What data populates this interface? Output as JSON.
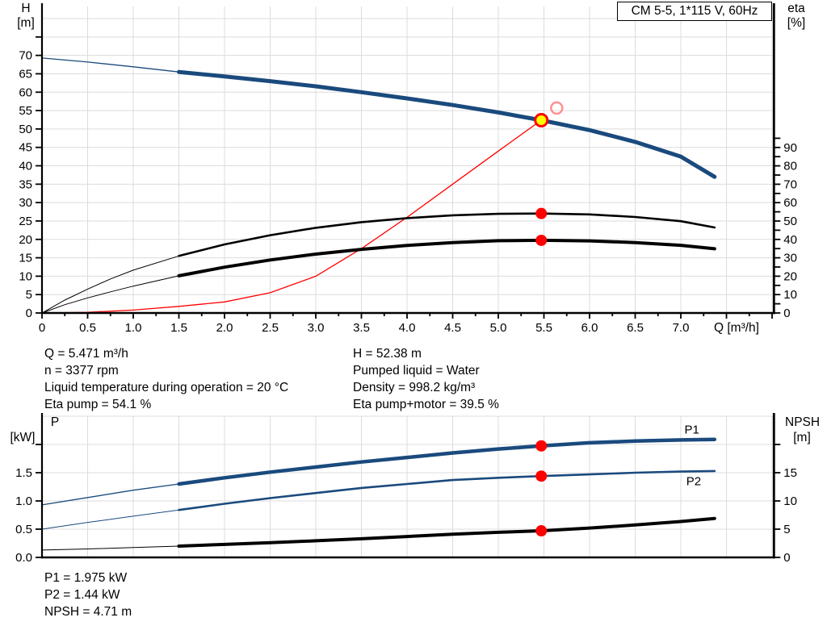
{
  "colors": {
    "blue": "#1a4a7d",
    "black": "#000000",
    "red": "#ff0000",
    "red_light": "#ff9090",
    "yellow": "#ffff00",
    "grid": "#dcdcdc",
    "axis": "#000000"
  },
  "chart_data": [
    {
      "type": "line",
      "name": "qh-efficiency-chart",
      "title": "CM 5-5, 1*115 V, 60Hz",
      "x_axis": {
        "label": "Q [m³/h]",
        "min": 0,
        "max": 8.02,
        "ticks": [
          [
            0,
            "0"
          ],
          [
            0.25,
            null
          ],
          [
            0.5,
            "0.5"
          ],
          [
            0.75,
            null
          ],
          [
            1,
            "1.0"
          ],
          [
            1.25,
            null
          ],
          [
            1.5,
            "1.5"
          ],
          [
            1.75,
            null
          ],
          [
            2,
            "2.0"
          ],
          [
            2.25,
            null
          ],
          [
            2.5,
            "2.5"
          ],
          [
            2.75,
            null
          ],
          [
            3,
            "3.0"
          ],
          [
            3.25,
            null
          ],
          [
            3.5,
            "3.5"
          ],
          [
            3.75,
            null
          ],
          [
            4,
            "4.0"
          ],
          [
            4.25,
            null
          ],
          [
            4.5,
            "4.5"
          ],
          [
            4.75,
            null
          ],
          [
            5,
            "5.0"
          ],
          [
            5.25,
            null
          ],
          [
            5.5,
            "5.5"
          ],
          [
            5.75,
            null
          ],
          [
            6,
            "6.0"
          ],
          [
            6.25,
            null
          ],
          [
            6.5,
            "6.5"
          ],
          [
            6.75,
            null
          ],
          [
            7,
            "7.0"
          ],
          [
            7.25,
            null
          ],
          [
            7.5,
            null
          ],
          [
            7.75,
            null
          ],
          [
            8,
            null
          ]
        ],
        "gridlines": [
          0.5,
          1,
          1.5,
          2,
          2.5,
          3,
          3.5,
          4,
          4.5,
          5,
          5.5,
          6,
          6.5,
          7,
          7.5,
          8
        ]
      },
      "y_left": {
        "label_1": "H",
        "label_2": "[m]",
        "min": 0,
        "max": 83.3,
        "ticks": [
          [
            0,
            "0"
          ],
          [
            5,
            "5"
          ],
          [
            10,
            "10"
          ],
          [
            15,
            "15"
          ],
          [
            20,
            "20"
          ],
          [
            25,
            "25"
          ],
          [
            30,
            "30"
          ],
          [
            35,
            "35"
          ],
          [
            40,
            "40"
          ],
          [
            45,
            "45"
          ],
          [
            50,
            "50"
          ],
          [
            55,
            "55"
          ],
          [
            60,
            "60"
          ],
          [
            65,
            "65"
          ],
          [
            70,
            "70"
          ],
          [
            75,
            null
          ]
        ],
        "gridlines": [
          5,
          10,
          15,
          20,
          25,
          30,
          35,
          40,
          45,
          50,
          55,
          60,
          65,
          70,
          75,
          80
        ]
      },
      "y_right": {
        "label_1": "eta",
        "label_2": "[%]",
        "min": 0,
        "max": 97,
        "ticks": [
          [
            0,
            "0"
          ],
          [
            5,
            null
          ],
          [
            10,
            "10"
          ],
          [
            15,
            null
          ],
          [
            20,
            "20"
          ],
          [
            25,
            null
          ],
          [
            30,
            "30"
          ],
          [
            35,
            null
          ],
          [
            40,
            "40"
          ],
          [
            45,
            null
          ],
          [
            50,
            "50"
          ],
          [
            55,
            null
          ],
          [
            60,
            "60"
          ],
          [
            65,
            null
          ],
          [
            70,
            "70"
          ],
          [
            75,
            null
          ],
          [
            80,
            "80"
          ],
          [
            85,
            null
          ],
          [
            90,
            "90"
          ],
          [
            95,
            null
          ]
        ]
      },
      "series": [
        {
          "name": "pump-curve",
          "axis": "left",
          "color": "blue",
          "thin_until": 1.5,
          "w_thin": 1.3,
          "w_thick": 5,
          "points": [
            [
              0,
              69.3
            ],
            [
              0.5,
              68.2
            ],
            [
              1,
              66.9
            ],
            [
              1.5,
              65.5
            ],
            [
              2,
              64.3
            ],
            [
              2.5,
              63.0
            ],
            [
              3,
              61.6
            ],
            [
              3.5,
              60.0
            ],
            [
              4,
              58.3
            ],
            [
              4.5,
              56.5
            ],
            [
              5,
              54.5
            ],
            [
              5.471,
              52.38
            ],
            [
              6,
              49.7
            ],
            [
              6.5,
              46.5
            ],
            [
              7,
              42.5
            ],
            [
              7.37,
              37.0
            ]
          ]
        },
        {
          "name": "system-curve",
          "axis": "left",
          "color": "red",
          "thin_until": 99,
          "w_thin": 1.3,
          "w_thick": 1.3,
          "points": [
            [
              0,
              0
            ],
            [
              0.5,
              0.2
            ],
            [
              1,
              0.8
            ],
            [
              1.5,
              1.8
            ],
            [
              2,
              3.0
            ],
            [
              2.5,
              5.5
            ],
            [
              3,
              10.0
            ],
            [
              3.5,
              17.5
            ],
            [
              4,
              26.0
            ],
            [
              4.5,
              35.0
            ],
            [
              5,
              44.0
            ],
            [
              5.471,
              52.38
            ]
          ]
        },
        {
          "name": "eta-pump-curve",
          "axis": "right",
          "color": "black",
          "thin_until": 1.5,
          "w_thin": 1,
          "w_thick": 2.6,
          "points": [
            [
              0,
              0
            ],
            [
              0.25,
              7
            ],
            [
              0.5,
              13
            ],
            [
              0.75,
              18.5
            ],
            [
              1,
              23.3
            ],
            [
              1.5,
              31
            ],
            [
              2,
              37.3
            ],
            [
              2.5,
              42.3
            ],
            [
              3,
              46.3
            ],
            [
              3.5,
              49.4
            ],
            [
              4,
              51.6
            ],
            [
              4.5,
              53.1
            ],
            [
              5,
              53.9
            ],
            [
              5.471,
              54.1
            ],
            [
              6,
              53.6
            ],
            [
              6.5,
              52.2
            ],
            [
              7,
              49.9
            ],
            [
              7.37,
              46.5
            ]
          ]
        },
        {
          "name": "eta-pump-motor-curve",
          "axis": "right",
          "color": "black",
          "thin_until": 1.5,
          "w_thin": 1,
          "w_thick": 4,
          "points": [
            [
              0,
              0
            ],
            [
              0.25,
              4.5
            ],
            [
              0.5,
              8.2
            ],
            [
              0.75,
              11.5
            ],
            [
              1,
              14.6
            ],
            [
              1.5,
              20.2
            ],
            [
              2,
              24.9
            ],
            [
              2.5,
              28.8
            ],
            [
              3,
              32.0
            ],
            [
              3.5,
              34.6
            ],
            [
              4,
              36.7
            ],
            [
              4.5,
              38.3
            ],
            [
              5,
              39.3
            ],
            [
              5.471,
              39.5
            ],
            [
              6,
              39.2
            ],
            [
              6.5,
              38.3
            ],
            [
              7,
              36.8
            ],
            [
              7.37,
              34.9
            ]
          ]
        }
      ],
      "markers": [
        {
          "name": "duty-point",
          "style": "yellow",
          "axis": "left",
          "q": 5.471,
          "v": 52.38
        },
        {
          "name": "requested-duty-point",
          "style": "hollow",
          "axis": "left",
          "q": 5.64,
          "v": 55.7
        },
        {
          "name": "eta-pump-op-point",
          "style": "red",
          "axis": "right",
          "q": 5.471,
          "v": 54.1
        },
        {
          "name": "eta-pump-motor-op-point",
          "style": "red",
          "axis": "right",
          "q": 5.471,
          "v": 39.5
        }
      ],
      "series_labels": []
    },
    {
      "type": "line",
      "name": "power-npsh-chart",
      "x_axis": {
        "label": "",
        "min": 0,
        "max": 8.02,
        "ticks": [],
        "gridlines": [
          0.5,
          1,
          1.5,
          2,
          2.5,
          3,
          3.5,
          4,
          4.5,
          5,
          5.5,
          6,
          6.5,
          7,
          7.5,
          8
        ]
      },
      "y_left": {
        "label_1": "P",
        "label_2": "[kW]",
        "min": 0,
        "max": 2.5,
        "ticks": [
          [
            0,
            "0.0"
          ],
          [
            0.5,
            "0.5"
          ],
          [
            1,
            "1.0"
          ],
          [
            1.5,
            "1.5"
          ],
          [
            2,
            null
          ]
        ],
        "gridlines": [
          0.5,
          1,
          1.5,
          2,
          2.5
        ]
      },
      "y_right": {
        "label_1": "NPSH",
        "label_2": "[m]",
        "min": 0,
        "max": 25,
        "ticks": [
          [
            0,
            "0"
          ],
          [
            5,
            "5"
          ],
          [
            10,
            "10"
          ],
          [
            15,
            "15"
          ],
          [
            20,
            null
          ]
        ]
      },
      "series": [
        {
          "name": "p1-curve",
          "axis": "left",
          "color": "blue",
          "thin_until": 1.5,
          "w_thin": 1.3,
          "w_thick": 4.5,
          "points": [
            [
              0,
              0.93
            ],
            [
              0.5,
              1.06
            ],
            [
              1,
              1.19
            ],
            [
              1.5,
              1.3
            ],
            [
              2,
              1.41
            ],
            [
              2.5,
              1.51
            ],
            [
              3,
              1.6
            ],
            [
              3.5,
              1.69
            ],
            [
              4,
              1.77
            ],
            [
              4.5,
              1.85
            ],
            [
              5,
              1.92
            ],
            [
              5.471,
              1.975
            ],
            [
              6,
              2.03
            ],
            [
              6.5,
              2.06
            ],
            [
              7,
              2.08
            ],
            [
              7.37,
              2.09
            ]
          ]
        },
        {
          "name": "p2-curve",
          "axis": "left",
          "color": "blue",
          "thin_until": 1.5,
          "w_thin": 1,
          "w_thick": 2.6,
          "points": [
            [
              0,
              0.5
            ],
            [
              0.5,
              0.62
            ],
            [
              1,
              0.73
            ],
            [
              1.5,
              0.84
            ],
            [
              2,
              0.95
            ],
            [
              2.5,
              1.05
            ],
            [
              3,
              1.14
            ],
            [
              3.5,
              1.23
            ],
            [
              4,
              1.3
            ],
            [
              4.5,
              1.37
            ],
            [
              5,
              1.41
            ],
            [
              5.471,
              1.44
            ],
            [
              6,
              1.47
            ],
            [
              6.5,
              1.5
            ],
            [
              7,
              1.52
            ],
            [
              7.37,
              1.53
            ]
          ]
        },
        {
          "name": "npsh-curve",
          "axis": "right",
          "color": "black",
          "thin_until": 1.5,
          "w_thin": 1,
          "w_thick": 4,
          "points": [
            [
              0,
              1.3
            ],
            [
              0.5,
              1.5
            ],
            [
              1,
              1.75
            ],
            [
              1.5,
              2.0
            ],
            [
              2,
              2.3
            ],
            [
              2.5,
              2.6
            ],
            [
              3,
              2.95
            ],
            [
              3.5,
              3.3
            ],
            [
              4,
              3.7
            ],
            [
              4.5,
              4.1
            ],
            [
              5,
              4.45
            ],
            [
              5.471,
              4.71
            ],
            [
              6,
              5.2
            ],
            [
              6.5,
              5.75
            ],
            [
              7,
              6.35
            ],
            [
              7.37,
              6.9
            ]
          ]
        }
      ],
      "markers": [
        {
          "name": "p1-op-point",
          "style": "red",
          "axis": "left",
          "q": 5.471,
          "v": 1.975
        },
        {
          "name": "p2-op-point",
          "style": "red",
          "axis": "left",
          "q": 5.471,
          "v": 1.44
        },
        {
          "name": "npsh-op-point",
          "style": "red",
          "axis": "right",
          "q": 5.471,
          "v": 4.71
        }
      ],
      "series_labels": [
        {
          "text": "P1",
          "q": 7.04,
          "v": 2.19,
          "axis": "left"
        },
        {
          "text": "P2",
          "q": 7.06,
          "v": 1.28,
          "axis": "left"
        }
      ]
    }
  ],
  "annotations": {
    "left": [
      "Q = 5.471 m³/h",
      "n = 3377 rpm",
      "Liquid temperature during operation = 20 °C",
      "Eta pump = 54.1 %"
    ],
    "right": [
      "H = 52.38 m",
      "Pumped liquid = Water",
      "Density = 998.2 kg/m³",
      "Eta pump+motor = 39.5 %"
    ],
    "bottom": [
      "P1 = 1.975 kW",
      "P2 = 1.44 kW",
      "NPSH = 4.71 m"
    ]
  }
}
